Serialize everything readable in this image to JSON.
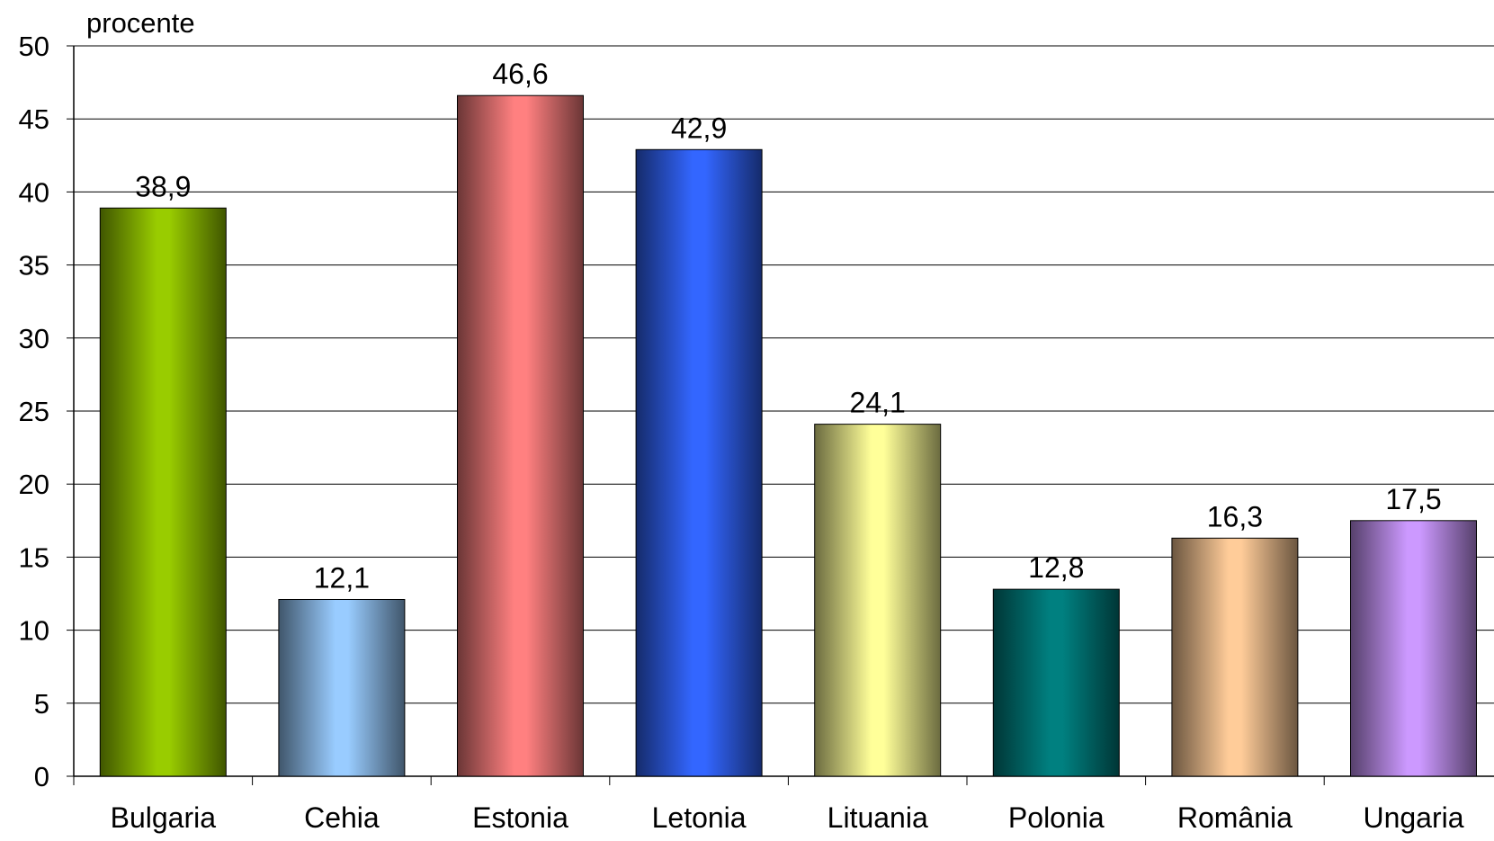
{
  "chart_data": {
    "type": "bar",
    "title": "",
    "xlabel": "",
    "ylabel": "procente",
    "categories": [
      "Bulgaria",
      "Cehia",
      "Estonia",
      "Letonia",
      "Lituania",
      "Polonia",
      "România",
      "Ungaria"
    ],
    "values": [
      38.9,
      12.1,
      46.6,
      42.9,
      24.1,
      12.8,
      16.3,
      17.5
    ],
    "data_labels": [
      "38,9",
      "12,1",
      "46,6",
      "42,9",
      "24,1",
      "12,8",
      "16,3",
      "17,5"
    ],
    "y_ticks": [
      "0",
      "5",
      "10",
      "15",
      "20",
      "25",
      "30",
      "35",
      "40",
      "45",
      "50"
    ],
    "ylim": [
      0,
      50
    ],
    "grid": true,
    "legend": "none",
    "colors": [
      "#99cc00",
      "#99ccff",
      "#ff8080",
      "#3366ff",
      "#ffff99",
      "#008080",
      "#ffcc99",
      "#cc99ff"
    ]
  }
}
